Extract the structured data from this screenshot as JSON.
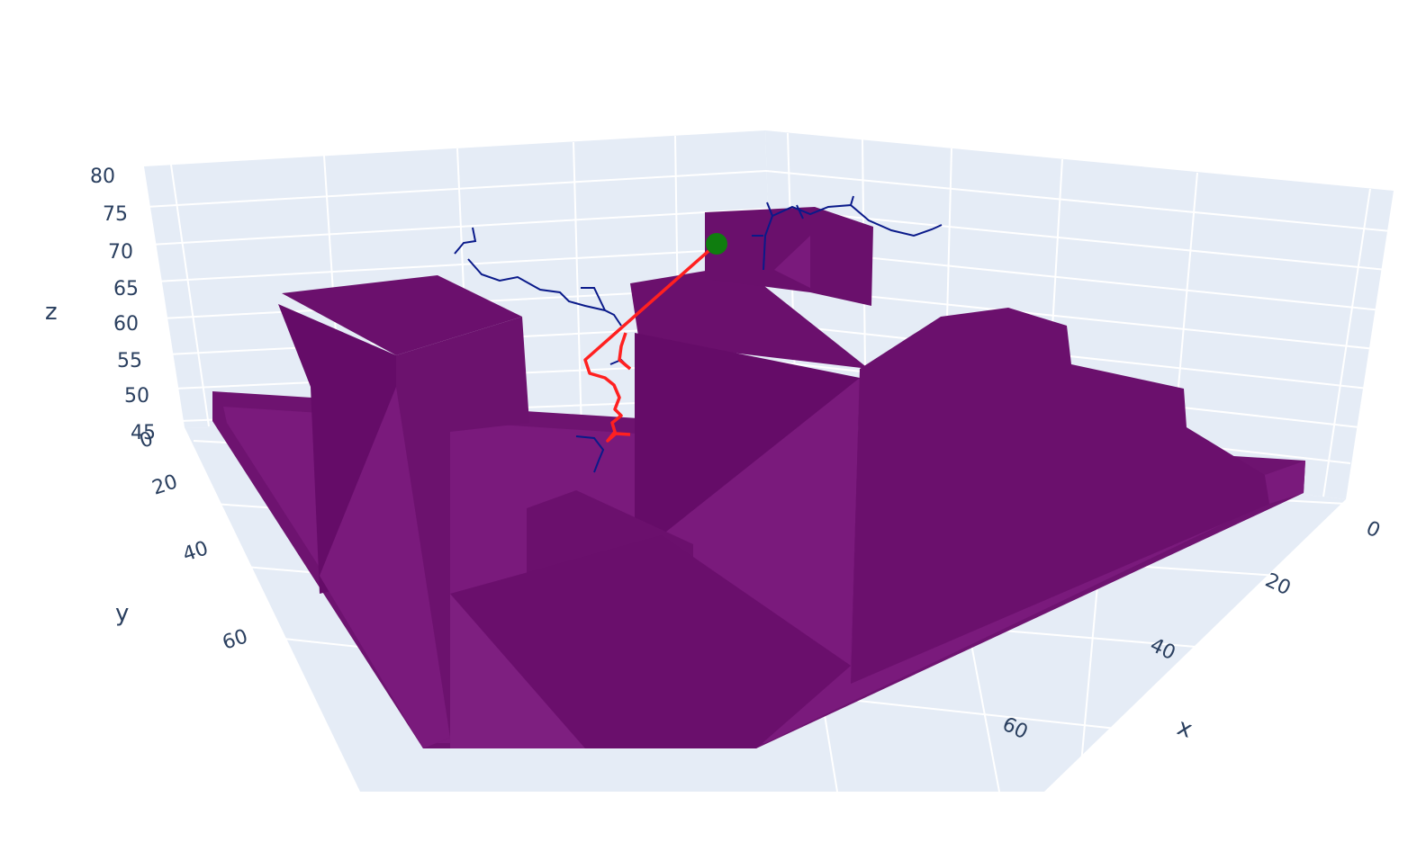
{
  "chart_data": {
    "type": "surface",
    "title": "",
    "axes": {
      "x": {
        "title": "x",
        "ticks": [
          "0",
          "20",
          "40",
          "60"
        ]
      },
      "y": {
        "title": "y",
        "ticks": [
          "0",
          "20",
          "40",
          "60"
        ]
      },
      "z": {
        "title": "z",
        "ticks": [
          "45",
          "50",
          "55",
          "60",
          "65",
          "70",
          "75",
          "80"
        ],
        "range": [
          45,
          80
        ]
      }
    },
    "scene": {
      "background": "#e5ecf6",
      "grid": true,
      "terrain_color": "#6b0f6b",
      "tree_color": "#0a1a8a",
      "path_color": "#ff2020",
      "marker_color": "#0f7d0f"
    },
    "series": [
      {
        "kind": "mesh"
      },
      {
        "kind": "lines"
      },
      {
        "kind": "line"
      },
      {
        "kind": "point",
        "x": 2,
        "y": 20,
        "z": 71
      }
    ]
  }
}
